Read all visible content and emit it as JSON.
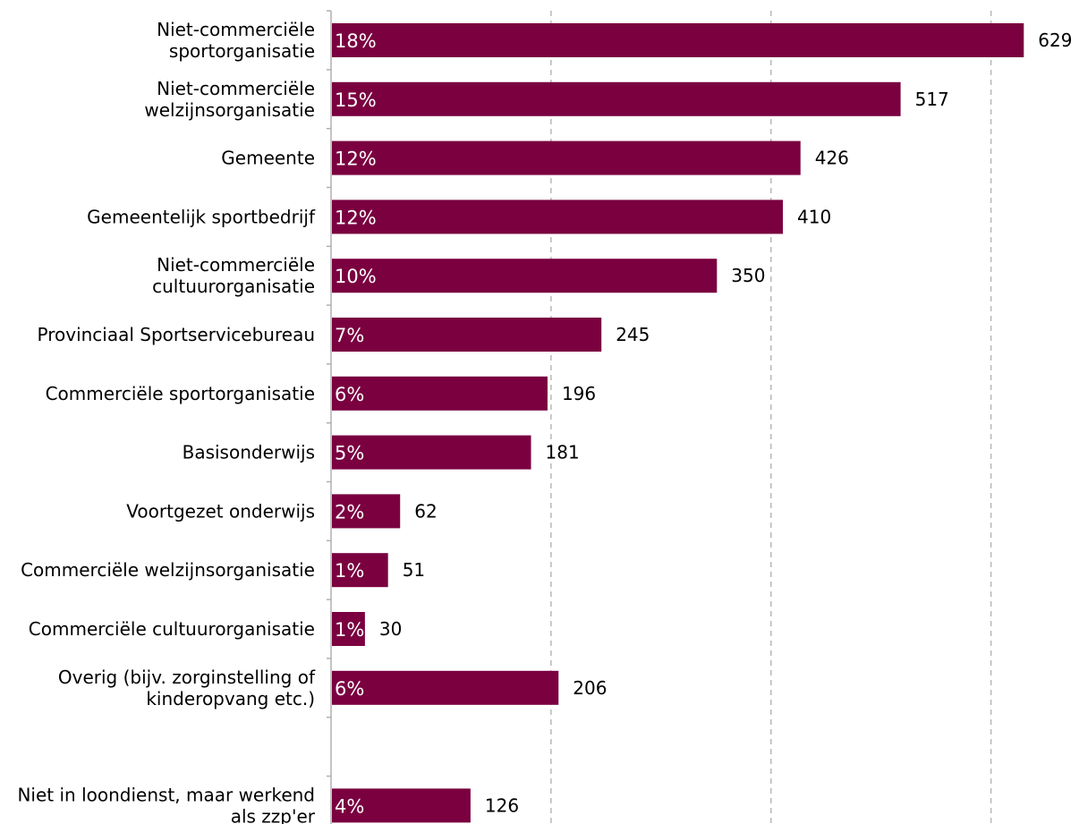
{
  "chart_data": {
    "type": "bar",
    "orientation": "horizontal",
    "title": "",
    "xlabel": "",
    "ylabel": "",
    "xlim": [
      0,
      650
    ],
    "grid": "vertical dashed",
    "legend": "none",
    "bar_color": "#7a0040",
    "categories": [
      [
        "Niet-commerciële",
        "sportorganisatie"
      ],
      [
        "Niet-commerciële",
        "welzijnsorganisatie"
      ],
      [
        "Gemeente"
      ],
      [
        "Gemeentelijk sportbedrijf"
      ],
      [
        "Niet-commerciële",
        "cultuurorganisatie"
      ],
      [
        "Provinciaal Sportservicebureau"
      ],
      [
        "Commerciële sportorganisatie"
      ],
      [
        "Basisonderwijs"
      ],
      [
        "Voortgezet onderwijs"
      ],
      [
        "Commerciële welzijnsorganisatie"
      ],
      [
        "Commerciële cultuurorganisatie"
      ],
      [
        "Overig (bijv. zorginstelling of",
        "kinderopvang etc.)"
      ],
      [],
      [
        "Niet in loondienst, maar werkend",
        "als zzp'er"
      ]
    ],
    "values": [
      629,
      517,
      426,
      410,
      350,
      245,
      196,
      181,
      62,
      51,
      30,
      206,
      null,
      126
    ],
    "percent_labels": [
      "18%",
      "15%",
      "12%",
      "12%",
      "10%",
      "7%",
      "6%",
      "5%",
      "2%",
      "1%",
      "1%",
      "6%",
      "",
      "4%"
    ]
  }
}
